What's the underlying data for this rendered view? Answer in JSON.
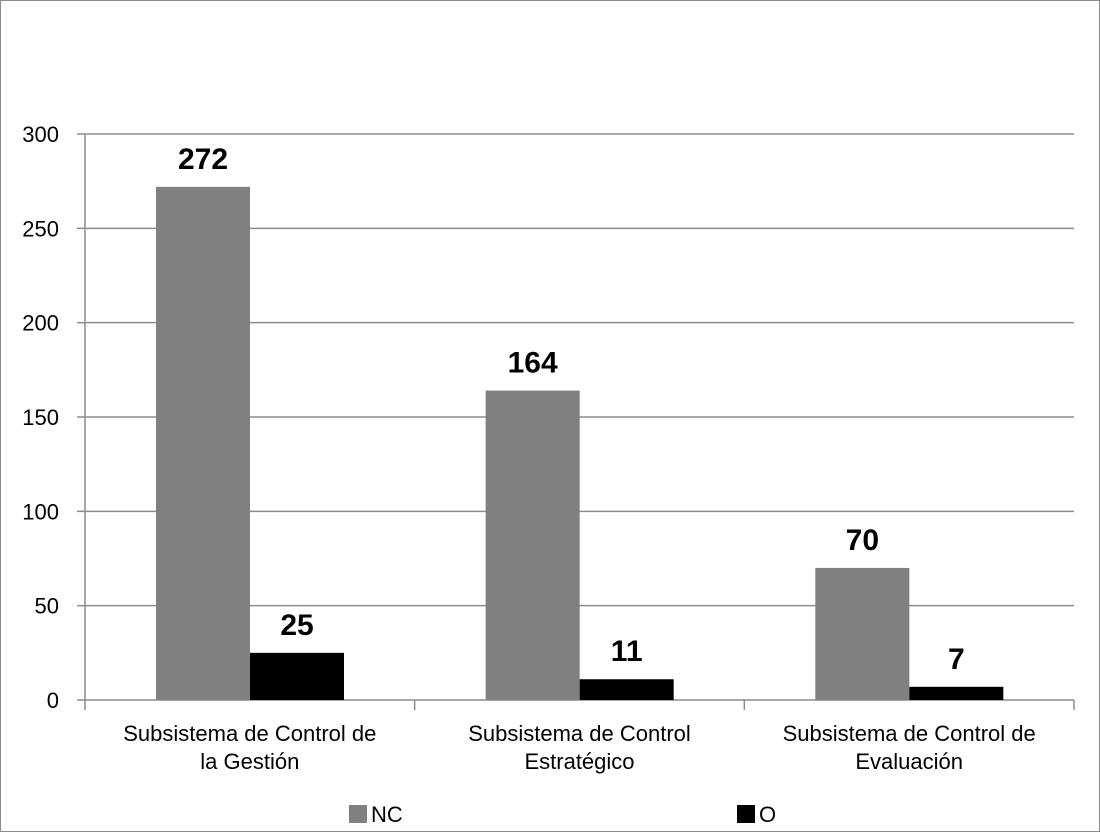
{
  "chart_data": {
    "type": "bar",
    "categories": [
      [
        "Subsistema de Control de",
        "la Gestión"
      ],
      [
        "Subsistema de Control",
        "Estratégico"
      ],
      [
        "Subsistema de Control de",
        "Evaluación"
      ]
    ],
    "series": [
      {
        "name": "NC",
        "values": [
          272,
          164,
          70
        ],
        "color": "#808080"
      },
      {
        "name": "O",
        "values": [
          25,
          11,
          7
        ],
        "color": "#000000"
      }
    ],
    "title": "",
    "xlabel": "",
    "ylabel": "",
    "ylim": [
      0,
      300
    ],
    "yticks": [
      0,
      50,
      100,
      150,
      200,
      250,
      300
    ],
    "grid": true,
    "legend": "bottom"
  }
}
